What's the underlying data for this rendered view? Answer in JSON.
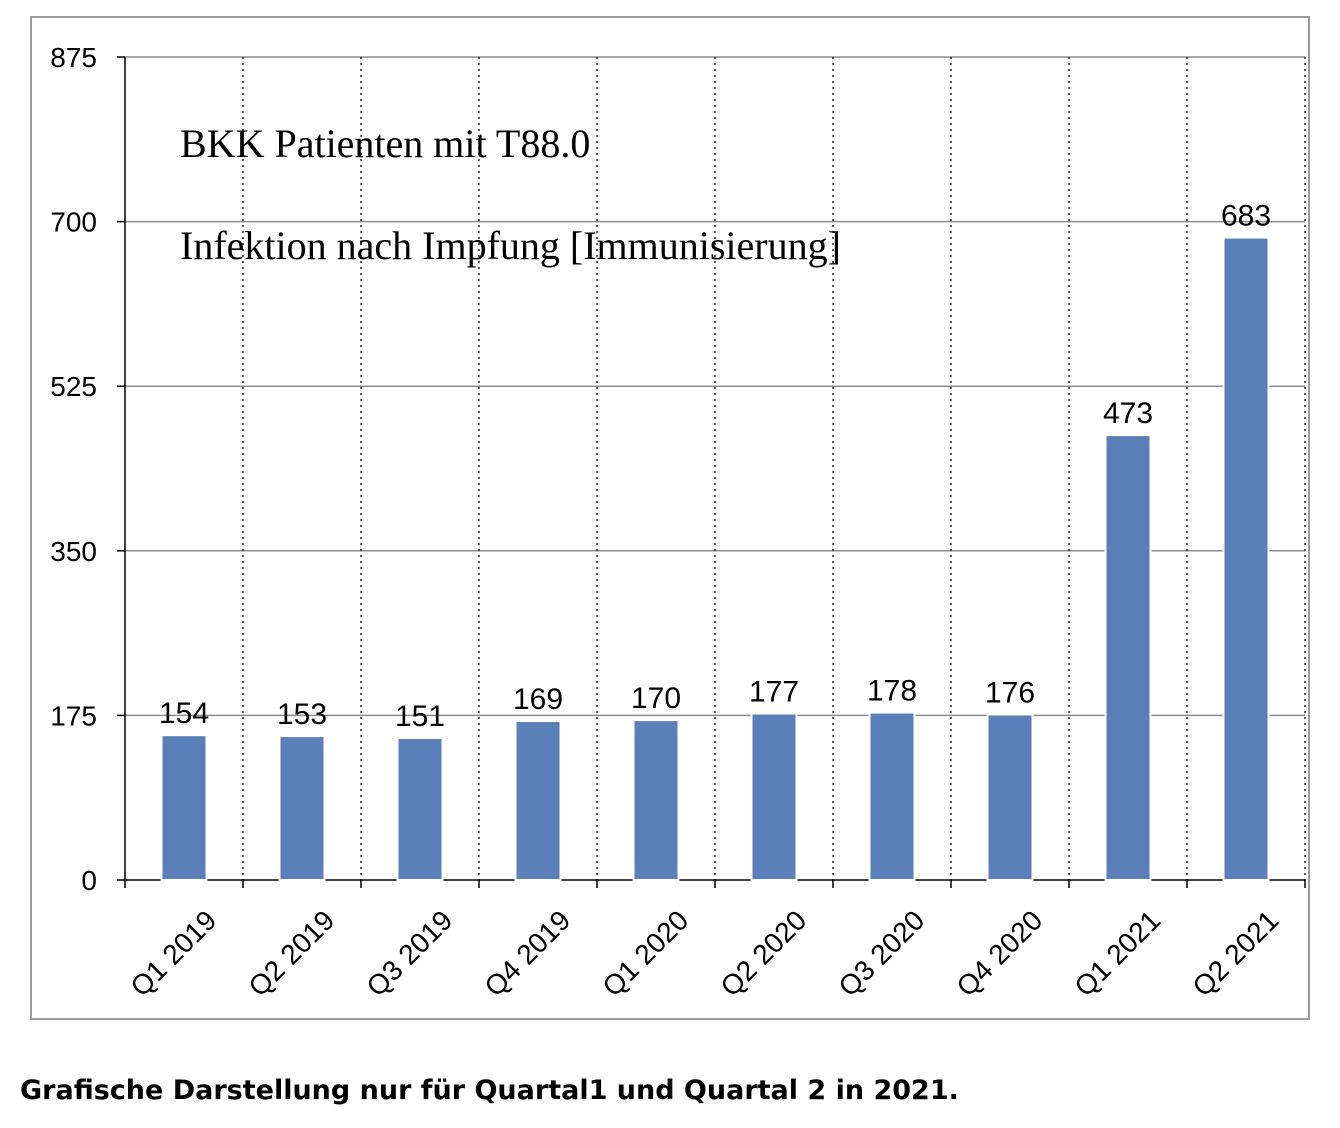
{
  "chart_data": {
    "type": "bar",
    "categories": [
      "Q1 2019",
      "Q2 2019",
      "Q3 2019",
      "Q4 2019",
      "Q1 2020",
      "Q2 2020",
      "Q3 2020",
      "Q4 2020",
      "Q1 2021",
      "Q2 2021"
    ],
    "values": [
      154,
      153,
      151,
      169,
      170,
      177,
      178,
      176,
      473,
      683
    ],
    "ylim": [
      0,
      875
    ],
    "yticks": [
      0,
      175,
      350,
      525,
      700,
      875
    ],
    "annotations": [
      "BKK Patienten mit T88.0",
      "Infektion nach Impfung [Immunisierung]"
    ],
    "grid": true,
    "bar_color": "#5b7fb8",
    "xlabel": "",
    "ylabel": ""
  },
  "caption": "Grafische Darstellung nur für Quartal1 und Quartal 2 in 2021."
}
